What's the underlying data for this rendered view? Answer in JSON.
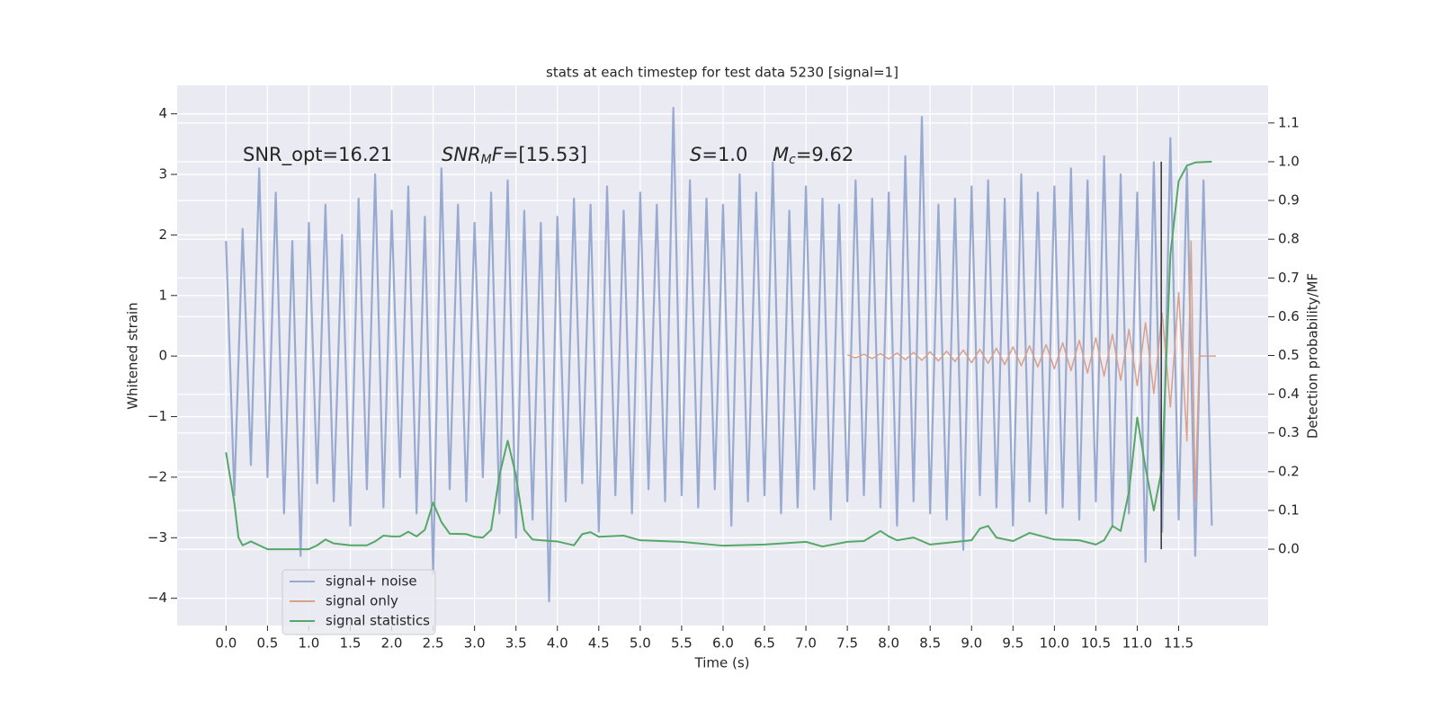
{
  "chart_data": {
    "type": "line",
    "title": "stats at each timestep for test data 5230 [signal=1]",
    "xlabel": "Time (s)",
    "ylabel": "Whitened strain",
    "y2label": "Detection probability/MF",
    "annotations": [
      [
        {
          "text": "SNR_opt=16.21"
        }
      ],
      [
        {
          "text": "SNR",
          "italic": true
        },
        {
          "text": "M",
          "italic": true,
          "sub": true
        },
        {
          "text": "F",
          "italic": true
        },
        {
          "text": "=[15.53]"
        }
      ],
      [
        {
          "text": "S",
          "italic": true
        },
        {
          "text": "=1.0"
        }
      ],
      [
        {
          "text": "M",
          "italic": true
        },
        {
          "text": "c",
          "italic": true,
          "sub": true
        },
        {
          "text": "=9.62"
        }
      ]
    ],
    "xlim": [
      -0.59,
      12.58
    ],
    "ylim": [
      -4.45,
      4.47
    ],
    "y2lim": [
      -0.197,
      1.197
    ],
    "xticks": [
      {
        "value": 0,
        "label": "0.0"
      },
      0.5,
      {
        "value": 1,
        "label": "1.0"
      },
      1.5,
      {
        "value": 2,
        "label": "2.0"
      },
      2.5,
      {
        "value": 3,
        "label": "3.0"
      },
      3.5,
      {
        "value": 4,
        "label": "4.0"
      },
      4.5,
      {
        "value": 5,
        "label": "5.0"
      },
      5.5,
      {
        "value": 6,
        "label": "6.0"
      },
      6.5,
      {
        "value": 7,
        "label": "7.0"
      },
      7.5,
      {
        "value": 8,
        "label": "8.0"
      },
      8.5,
      {
        "value": 9,
        "label": "9.0"
      },
      9.5,
      {
        "value": 10,
        "label": "10.0"
      },
      10.5,
      {
        "value": 11,
        "label": "11.0"
      },
      11.5
    ],
    "yticks": [
      {
        "value": -4,
        "label": "−4"
      },
      {
        "value": -3,
        "label": "−3"
      },
      {
        "value": -2,
        "label": "−2"
      },
      {
        "value": -1,
        "label": "−1"
      },
      0,
      1,
      2,
      3,
      4
    ],
    "y2ticks": [
      {
        "value": 0,
        "label": "0.0"
      },
      0.1,
      0.2,
      0.3,
      0.4,
      0.5,
      0.6,
      0.7,
      0.8,
      0.9,
      {
        "value": 1,
        "label": "1.0"
      },
      1.1
    ],
    "grid": true,
    "legend": "lower left",
    "vline": {
      "x": 11.29,
      "y2": [
        0.0,
        1.0
      ],
      "color": "#333333"
    },
    "series": [
      {
        "name": "signal+ noise",
        "color": "#99aad0",
        "x": [
          0,
          0.1,
          0.2,
          0.3,
          0.4,
          0.5,
          0.6,
          0.7,
          0.8,
          0.9,
          1,
          1.1,
          1.2,
          1.3,
          1.4,
          1.5,
          1.6,
          1.7,
          1.8,
          1.9,
          2,
          2.1,
          2.2,
          2.3,
          2.4,
          2.5,
          2.6,
          2.7,
          2.8,
          2.9,
          3,
          3.1,
          3.2,
          3.3,
          3.4,
          3.5,
          3.6,
          3.7,
          3.8,
          3.9,
          4,
          4.1,
          4.2,
          4.3,
          4.4,
          4.5,
          4.6,
          4.7,
          4.8,
          4.9,
          5,
          5.1,
          5.2,
          5.3,
          5.4,
          5.5,
          5.6,
          5.7,
          5.8,
          5.9,
          6,
          6.1,
          6.2,
          6.3,
          6.4,
          6.5,
          6.6,
          6.7,
          6.8,
          6.9,
          7,
          7.1,
          7.2,
          7.3,
          7.4,
          7.5,
          7.6,
          7.7,
          7.8,
          7.9,
          8,
          8.1,
          8.2,
          8.3,
          8.4,
          8.5,
          8.6,
          8.7,
          8.8,
          8.9,
          9,
          9.1,
          9.2,
          9.3,
          9.4,
          9.5,
          9.6,
          9.7,
          9.8,
          9.9,
          10,
          10.1,
          10.2,
          10.3,
          10.4,
          10.5,
          10.6,
          10.7,
          10.8,
          10.9,
          11,
          11.1,
          11.2,
          11.3,
          11.4,
          11.5,
          11.6,
          11.7,
          11.8,
          11.9
        ],
        "values": [
          1.9,
          -2.3,
          2.1,
          -1.8,
          3.1,
          -2.0,
          2.7,
          -2.6,
          1.9,
          -3.3,
          2.2,
          -2.1,
          2.5,
          -2.4,
          2.0,
          -2.8,
          2.6,
          -2.2,
          3.0,
          -2.5,
          2.4,
          -2.0,
          2.8,
          -2.6,
          2.3,
          -3.6,
          3.1,
          -2.2,
          2.5,
          -2.4,
          2.2,
          -2.0,
          2.7,
          -2.6,
          2.9,
          -3.0,
          2.4,
          -2.7,
          2.2,
          -4.05,
          2.3,
          -2.4,
          2.6,
          -2.1,
          2.5,
          -2.9,
          2.8,
          -2.3,
          2.4,
          -2.6,
          2.7,
          -2.2,
          2.5,
          -2.4,
          4.1,
          -2.3,
          2.9,
          -2.5,
          2.6,
          -2.2,
          2.5,
          -2.8,
          3.0,
          -2.4,
          2.7,
          -2.3,
          3.2,
          -2.6,
          2.4,
          -2.5,
          2.8,
          -2.2,
          2.6,
          -2.7,
          2.5,
          -2.4,
          2.9,
          -2.3,
          2.6,
          -2.5,
          2.7,
          -2.8,
          3.3,
          -2.4,
          3.95,
          -2.6,
          2.5,
          -2.7,
          2.6,
          -3.2,
          2.8,
          -2.3,
          2.9,
          -2.5,
          2.6,
          -2.8,
          3.0,
          -2.4,
          2.7,
          -2.6,
          2.8,
          -2.5,
          3.1,
          -2.7,
          2.9,
          -2.4,
          3.3,
          -2.8,
          3.0,
          -2.6,
          2.7,
          -3.4,
          3.2,
          -2.9,
          3.6,
          -2.7,
          3.1,
          -3.3,
          2.9,
          -2.8
        ]
      },
      {
        "name": "signal only",
        "color": "#d9a08c",
        "x": [
          7.5,
          7.6,
          7.7,
          7.8,
          7.9,
          8,
          8.1,
          8.2,
          8.3,
          8.4,
          8.5,
          8.6,
          8.7,
          8.8,
          8.9,
          9,
          9.1,
          9.2,
          9.3,
          9.4,
          9.5,
          9.6,
          9.7,
          9.8,
          9.9,
          10,
          10.1,
          10.2,
          10.3,
          10.4,
          10.5,
          10.6,
          10.7,
          10.8,
          10.9,
          11,
          11.1,
          11.2,
          11.3,
          11.4,
          11.5,
          11.6,
          11.65,
          11.7,
          11.75,
          11.95
        ],
        "values": [
          0.02,
          -0.03,
          0.03,
          -0.04,
          0.04,
          -0.05,
          0.05,
          -0.06,
          0.06,
          -0.07,
          0.07,
          -0.08,
          0.08,
          -0.09,
          0.1,
          -0.11,
          0.11,
          -0.12,
          0.13,
          -0.14,
          0.15,
          -0.16,
          0.17,
          -0.18,
          0.19,
          -0.21,
          0.22,
          -0.24,
          0.26,
          -0.28,
          0.3,
          -0.33,
          0.36,
          -0.4,
          0.44,
          -0.49,
          0.55,
          -0.62,
          0.71,
          -0.84,
          1.05,
          -1.4,
          1.9,
          -2.4,
          0,
          0
        ]
      },
      {
        "name": "signal statistics",
        "color": "#55a868",
        "axis": "y2",
        "x": [
          0,
          0.1,
          0.15,
          0.2,
          0.3,
          0.4,
          0.5,
          0.8,
          1,
          1.1,
          1.2,
          1.3,
          1.5,
          1.7,
          1.8,
          1.9,
          2,
          2.1,
          2.2,
          2.3,
          2.4,
          2.5,
          2.6,
          2.7,
          2.9,
          3,
          3.1,
          3.2,
          3.3,
          3.4,
          3.5,
          3.6,
          3.7,
          3.8,
          4,
          4.2,
          4.3,
          4.4,
          4.5,
          4.8,
          5,
          5.5,
          6,
          6.5,
          7,
          7.2,
          7.5,
          7.7,
          7.9,
          8,
          8.1,
          8.3,
          8.5,
          9,
          9.1,
          9.2,
          9.3,
          9.5,
          9.7,
          10,
          10.3,
          10.5,
          10.6,
          10.7,
          10.8,
          10.9,
          11,
          11.1,
          11.2,
          11.3,
          11.4,
          11.5,
          11.6,
          11.7,
          11.9
        ],
        "values": [
          0.25,
          0.12,
          0.03,
          0.01,
          0.02,
          0.01,
          0.0,
          0.0,
          0.0,
          0.01,
          0.025,
          0.015,
          0.01,
          0.01,
          0.02,
          0.035,
          0.033,
          0.033,
          0.045,
          0.033,
          0.05,
          0.12,
          0.07,
          0.04,
          0.039,
          0.032,
          0.03,
          0.05,
          0.19,
          0.28,
          0.19,
          0.05,
          0.025,
          0.023,
          0.02,
          0.01,
          0.039,
          0.044,
          0.032,
          0.035,
          0.023,
          0.019,
          0.009,
          0.012,
          0.019,
          0.007,
          0.019,
          0.021,
          0.047,
          0.033,
          0.023,
          0.03,
          0.012,
          0.023,
          0.053,
          0.06,
          0.03,
          0.021,
          0.042,
          0.025,
          0.023,
          0.012,
          0.023,
          0.06,
          0.047,
          0.148,
          0.34,
          0.21,
          0.1,
          0.21,
          0.76,
          0.95,
          0.99,
          0.998,
          1.0
        ]
      }
    ]
  }
}
